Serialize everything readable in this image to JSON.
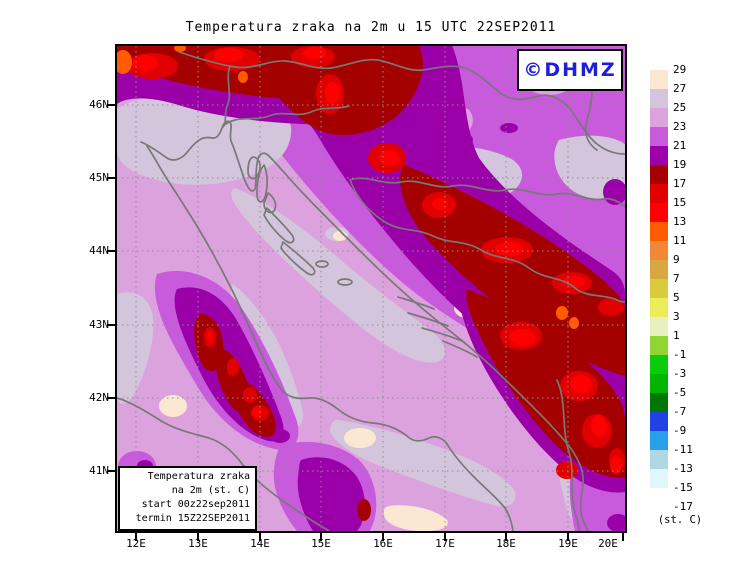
{
  "title": "Temperatura zraka na 2m u 15 UTC 22SEP2011",
  "logo": {
    "label": "©DHMZ",
    "color": "#1F1FD9"
  },
  "info_box": {
    "lines": [
      "Temperatura zraka",
      "na 2m (st. C)",
      "start 00z22sep2011",
      "termin 15Z22SEP2011"
    ]
  },
  "axes": {
    "lat": {
      "labels": [
        "46N",
        "45N",
        "44N",
        "43N",
        "42N",
        "41N"
      ]
    },
    "lon": {
      "labels": [
        "12E",
        "13E",
        "14E",
        "15E",
        "16E",
        "17E",
        "18E",
        "19E",
        "20E"
      ]
    }
  },
  "legend": {
    "tick_labels": [
      "29",
      "27",
      "25",
      "23",
      "21",
      "19",
      "17",
      "15",
      "13",
      "11",
      "9",
      "7",
      "5",
      "3",
      "1",
      "-1",
      "-3",
      "-5",
      "-7",
      "-9",
      "-11",
      "-13",
      "-15",
      "-17"
    ],
    "box_colors": [
      "#FCE8D2",
      "#D3C6DC",
      "#DCA2DE",
      "#C75BDB",
      "#9B00A8",
      "#A40000",
      "#E00000",
      "#FF0000",
      "#FF5C00",
      "#F08838",
      "#D9A63F",
      "#D8CC3C",
      "#ECEC58",
      "#E8F0C0",
      "#8FD633",
      "#0ACC0A",
      "#00B400",
      "#007800",
      "#2142E2",
      "#28A0E8",
      "#B0D8E2",
      "#DFF6FB",
      "#FFFFFF"
    ],
    "unit_label": "(st. C)"
  },
  "map": {
    "palette": {
      "t27_29": "#FCE8D2",
      "t25_27": "#D3C6DC",
      "t23_25": "#DCA2DE",
      "t21_23": "#C75BDB",
      "t19_21": "#9B00A8",
      "t17_19": "#A40000",
      "t15_17": "#E00000",
      "t13_15": "#FF0000",
      "t11_13": "#FF5C00",
      "coastline": "#787878",
      "gridline": "#8F8F8F",
      "frame": "#000000"
    }
  }
}
